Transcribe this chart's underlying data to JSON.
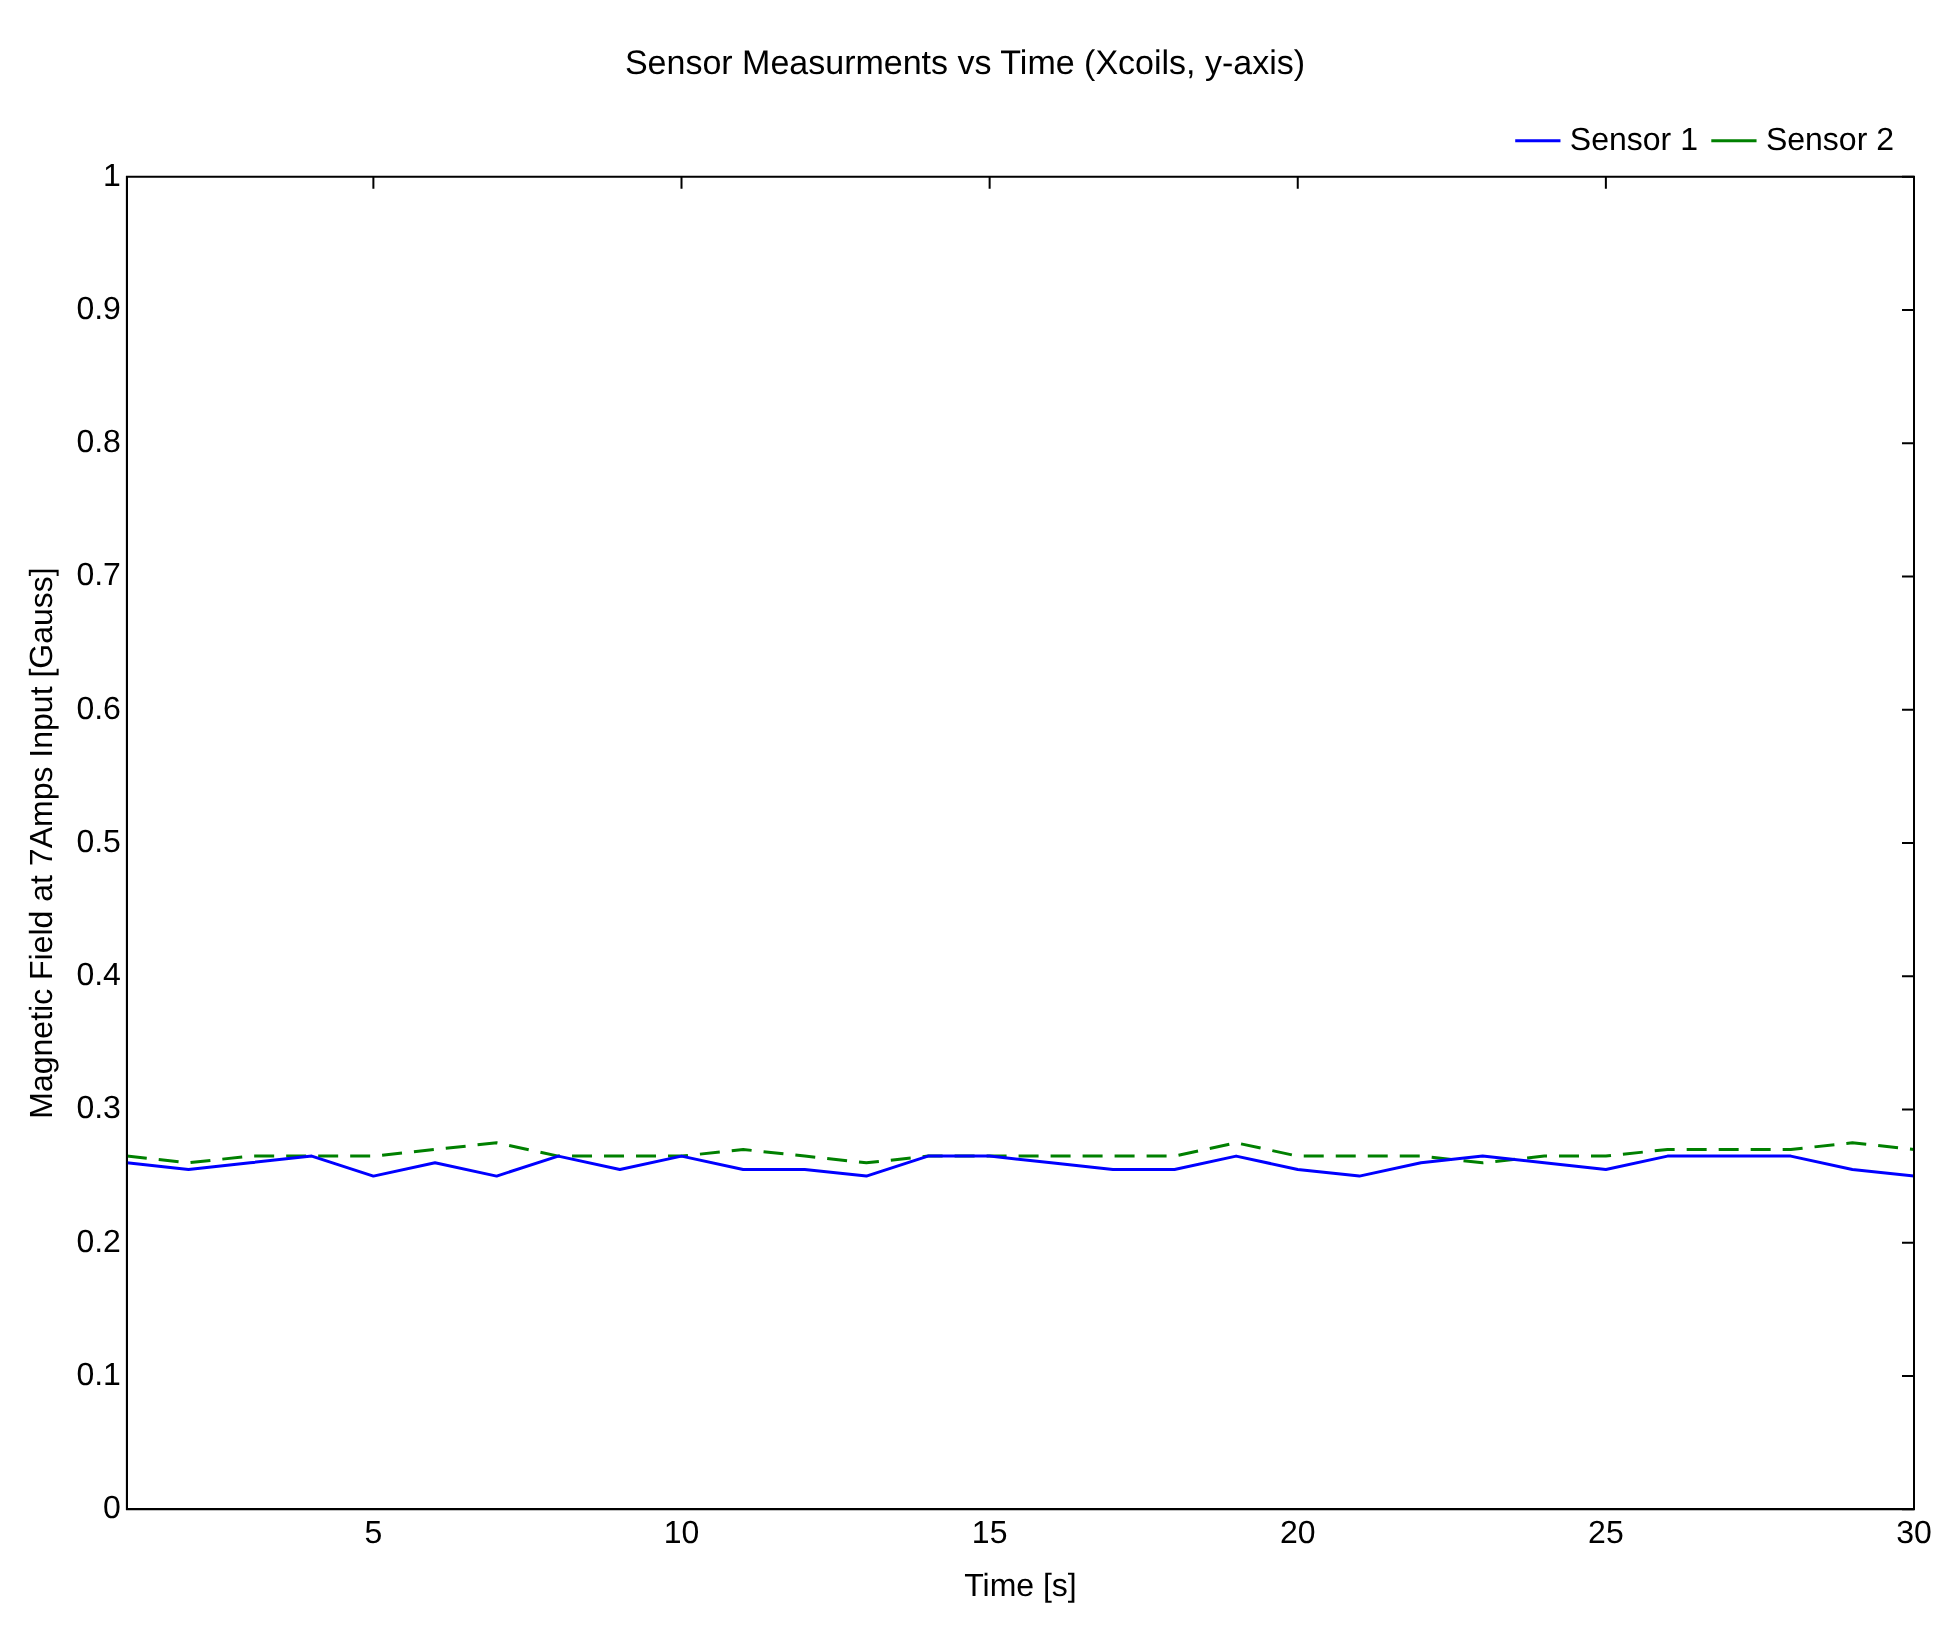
{
  "chart_data": {
    "type": "line",
    "title": "Sensor Measurments vs Time (Xcoils, y-axis)",
    "xlabel": "Time [s]",
    "ylabel": "Magnetic Field at 7Amps Input [Gauss]",
    "x": [
      1,
      2,
      3,
      4,
      5,
      6,
      7,
      8,
      9,
      10,
      11,
      12,
      13,
      14,
      15,
      16,
      17,
      18,
      19,
      20,
      21,
      22,
      23,
      24,
      25,
      26,
      27,
      28,
      29,
      30
    ],
    "series": [
      {
        "name": "Sensor 1",
        "color": "#0000ff",
        "line_style": "solid",
        "values": [
          0.26,
          0.255,
          0.26,
          0.265,
          0.25,
          0.26,
          0.25,
          0.265,
          0.255,
          0.265,
          0.255,
          0.255,
          0.25,
          0.265,
          0.265,
          0.26,
          0.255,
          0.255,
          0.265,
          0.255,
          0.25,
          0.26,
          0.265,
          0.26,
          0.255,
          0.265,
          0.265,
          0.265,
          0.255,
          0.25
        ]
      },
      {
        "name": "Sensor 2",
        "color": "#008000",
        "line_style": "dashed",
        "values": [
          0.265,
          0.26,
          0.265,
          0.265,
          0.265,
          0.27,
          0.275,
          0.265,
          0.265,
          0.265,
          0.27,
          0.265,
          0.26,
          0.265,
          0.265,
          0.265,
          0.265,
          0.265,
          0.275,
          0.265,
          0.265,
          0.265,
          0.26,
          0.265,
          0.265,
          0.27,
          0.27,
          0.27,
          0.275,
          0.27
        ]
      }
    ],
    "xlim": [
      1,
      30
    ],
    "xticks": [
      5,
      10,
      15,
      20,
      25,
      30
    ],
    "ylim": [
      0,
      1
    ],
    "yticks": [
      0,
      0.1,
      0.2,
      0.3,
      0.4,
      0.5,
      0.6,
      0.7,
      0.8,
      0.9,
      1
    ],
    "grid": false,
    "legend": "top right",
    "marker": "none"
  }
}
